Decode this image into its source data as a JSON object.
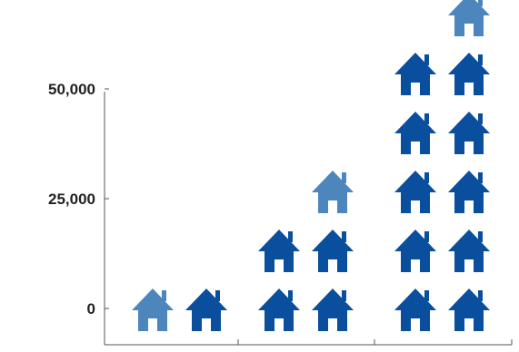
{
  "chart_data": {
    "type": "pictograph-bar",
    "title": "",
    "xlabel": "",
    "ylabel": "",
    "y_ticks": [
      {
        "value": 0,
        "label": "0"
      },
      {
        "value": 25000,
        "label": "25,000"
      },
      {
        "value": 50000,
        "label": "50,000"
      }
    ],
    "icon": "house-icon",
    "icon_unit": 10000,
    "colors": {
      "full": "#0a4f9e",
      "partial": "#4d86bc"
    },
    "categories": [
      {
        "label": "",
        "full_icons": 1,
        "partial_icons": 1
      },
      {
        "label": "",
        "full_icons": 4,
        "partial_icons": 1
      },
      {
        "label": "",
        "full_icons": 10,
        "partial_icons": 1
      }
    ]
  }
}
